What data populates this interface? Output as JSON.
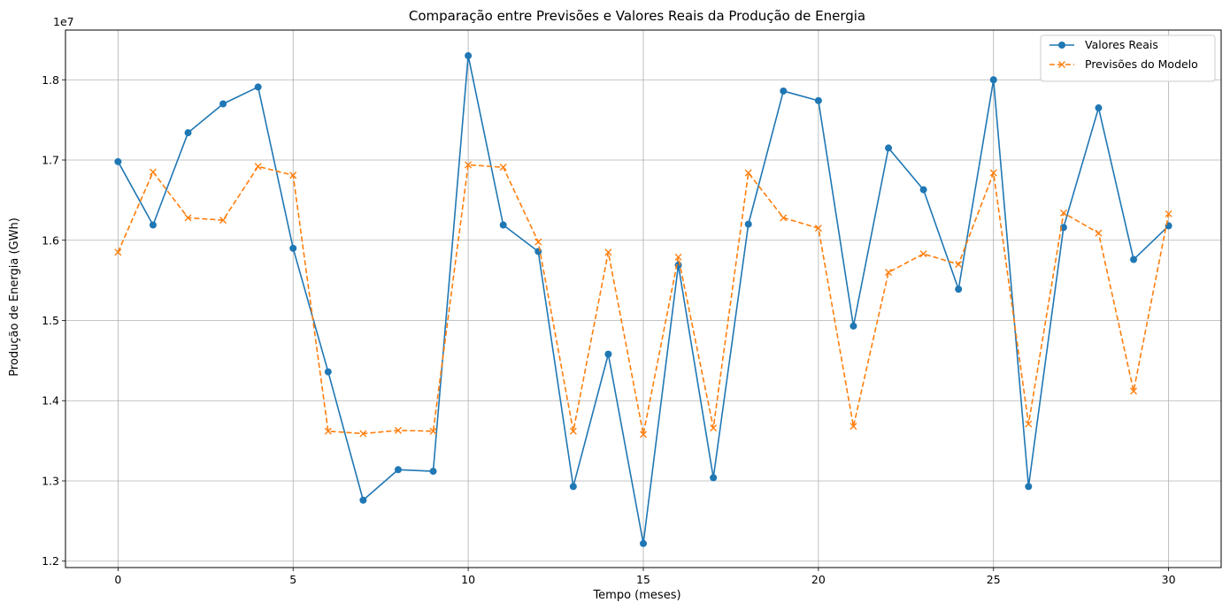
{
  "chart_data": {
    "type": "line",
    "title": "Comparação entre Previsões e Valores Reais da Produção de Energia",
    "xlabel": "Tempo (meses)",
    "ylabel": "Produção de Energia (GWh)",
    "y_scale_label": "1e7",
    "xlim": [
      -1.5,
      31.5
    ],
    "ylim": [
      1.192,
      1.862
    ],
    "x_ticks": [
      0,
      5,
      10,
      15,
      20,
      25,
      30
    ],
    "x_tick_labels": [
      "0",
      "5",
      "10",
      "15",
      "20",
      "25",
      "30"
    ],
    "y_ticks": [
      1.2,
      1.3,
      1.4,
      1.5,
      1.6,
      1.7,
      1.8
    ],
    "y_tick_labels": [
      "1.2",
      "1.3",
      "1.4",
      "1.5",
      "1.6",
      "1.7",
      "1.8"
    ],
    "grid": true,
    "legend_position": "top-right",
    "x": [
      0,
      1,
      2,
      3,
      4,
      5,
      6,
      7,
      8,
      9,
      10,
      11,
      12,
      13,
      14,
      15,
      16,
      17,
      18,
      19,
      20,
      21,
      22,
      23,
      24,
      25,
      26,
      27,
      28,
      29,
      30
    ],
    "series": [
      {
        "name": "Valores Reais",
        "color": "#1f77b4",
        "marker": "circle",
        "linestyle": "solid",
        "values": [
          1.698,
          1.619,
          1.734,
          1.77,
          1.791,
          1.59,
          1.436,
          1.276,
          1.314,
          1.312,
          1.83,
          1.619,
          1.586,
          1.293,
          1.458,
          1.222,
          1.569,
          1.304,
          1.62,
          1.786,
          1.774,
          1.493,
          1.715,
          1.663,
          1.539,
          1.8,
          1.293,
          1.616,
          1.765,
          1.576,
          1.618
        ]
      },
      {
        "name": "Previsões do Modelo",
        "color": "#ff7f0e",
        "marker": "x",
        "linestyle": "dashed",
        "values": [
          1.585,
          1.685,
          1.628,
          1.625,
          1.692,
          1.681,
          1.362,
          1.359,
          1.363,
          1.362,
          1.694,
          1.691,
          1.598,
          1.362,
          1.585,
          1.358,
          1.579,
          1.366,
          1.684,
          1.628,
          1.615,
          1.368,
          1.56,
          1.583,
          1.57,
          1.684,
          1.371,
          1.634,
          1.609,
          1.412,
          1.633
        ]
      }
    ]
  }
}
